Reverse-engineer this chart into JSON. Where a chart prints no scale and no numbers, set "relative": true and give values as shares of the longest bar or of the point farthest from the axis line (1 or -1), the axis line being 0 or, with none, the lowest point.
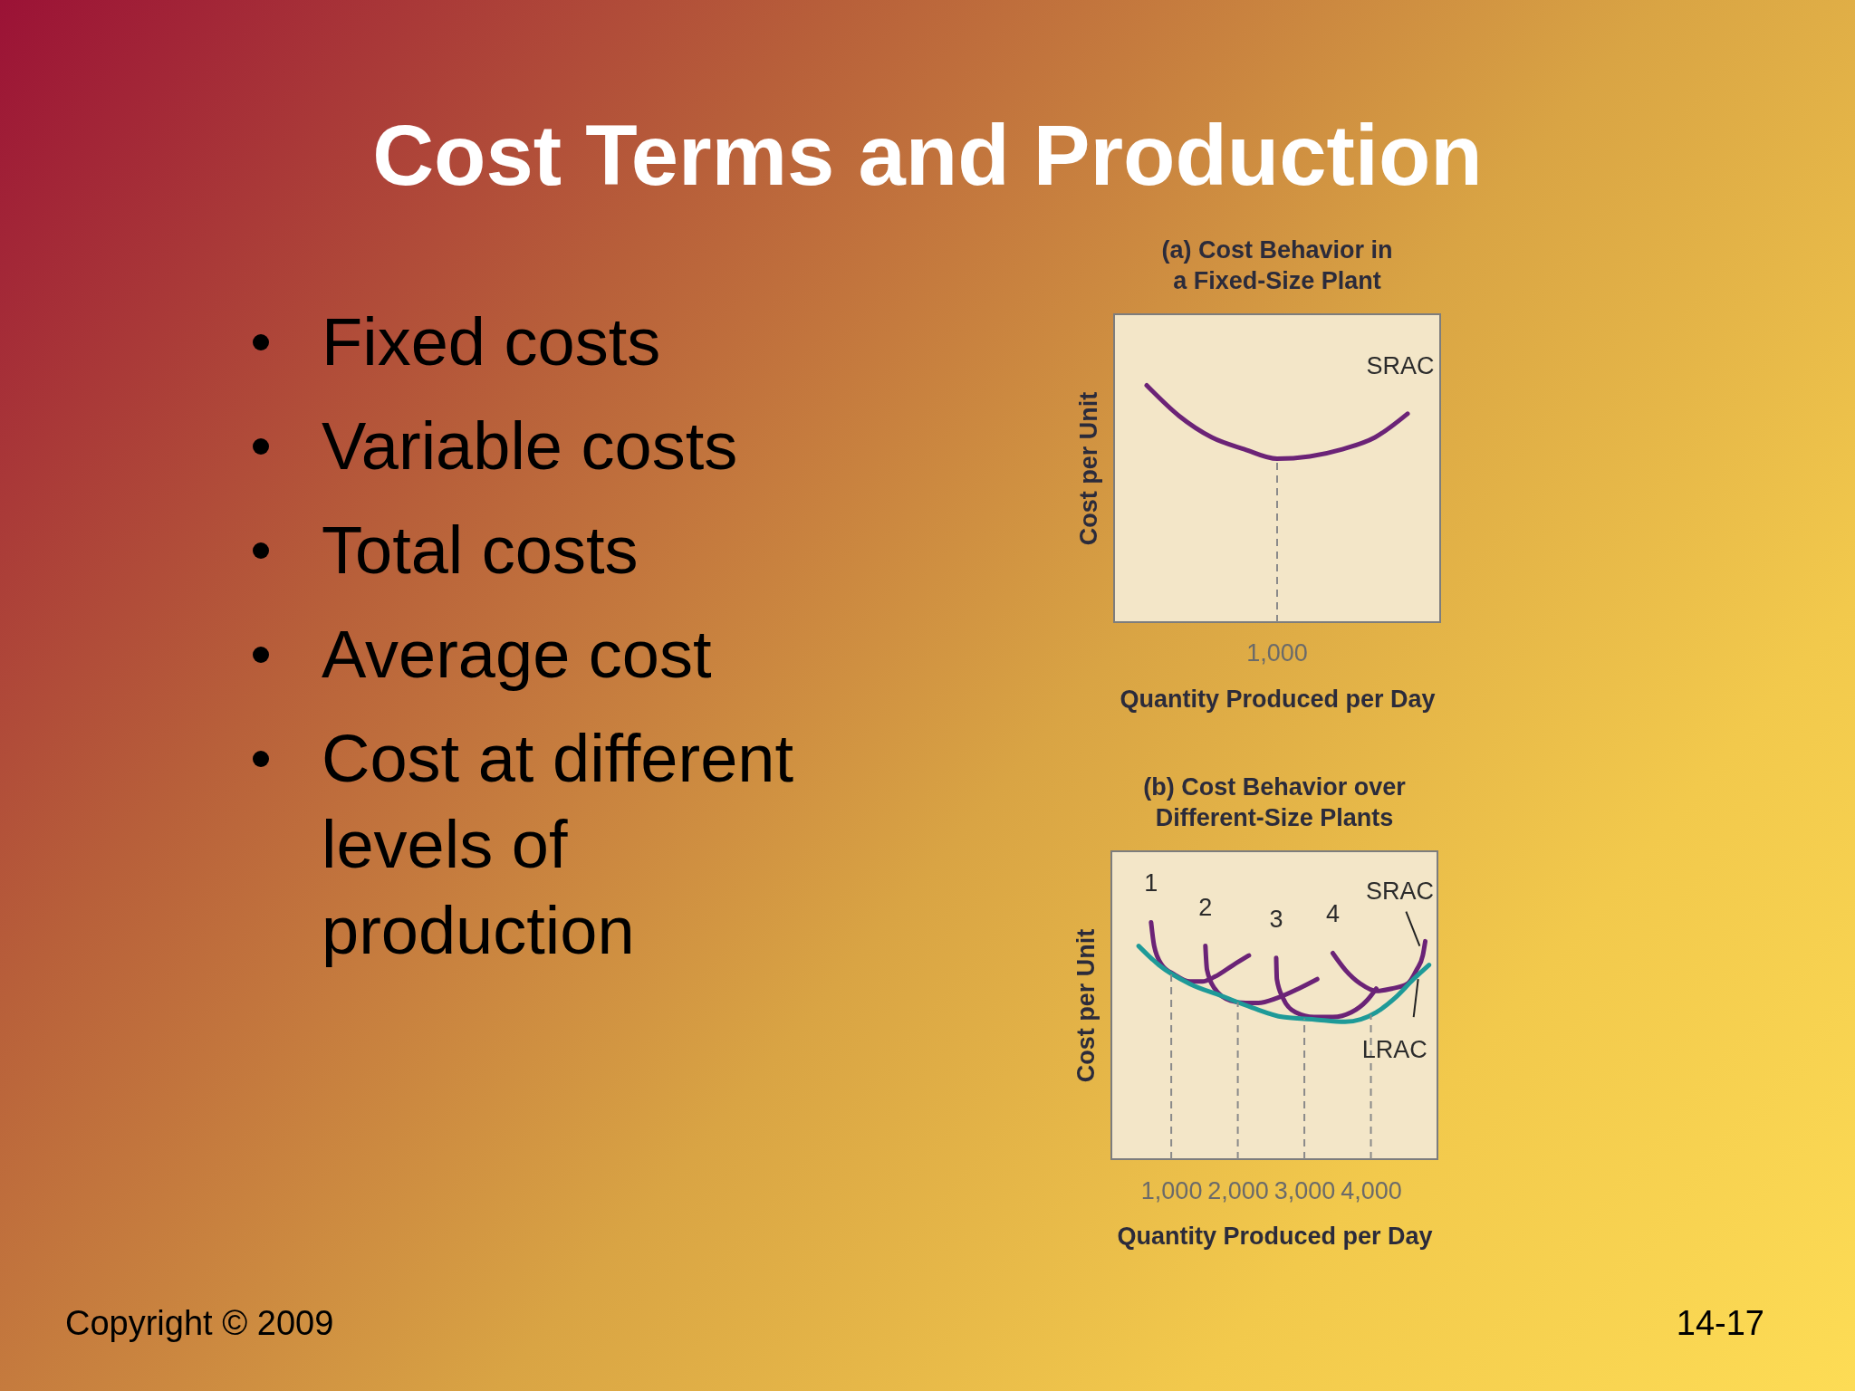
{
  "chart_data": [
    {
      "type": "other",
      "title": "Cost Terms and Production",
      "annotations": [
        "Fixed costs",
        "Variable costs",
        "Total costs",
        "Average cost",
        "Cost at different levels of production",
        "Copyright © 2009",
        "14-17"
      ]
    },
    {
      "type": "line",
      "title": "(a) Cost Behavior in\na Fixed-Size Plant",
      "xlabel": "Quantity Produced per Day",
      "ylabel": "Cost per Unit",
      "relative": true,
      "categories": [
        null,
        null,
        null,
        null,
        null,
        null,
        null,
        null,
        null
      ],
      "series": [
        {
          "name": "SRAC",
          "color": "#6b2377",
          "values": [
            1,
            0.87,
            0.78,
            0.73,
            0.69,
            0.7,
            0.73,
            0.78,
            0.88
          ]
        }
      ],
      "annotations": [
        "1,000"
      ]
    },
    {
      "type": "line",
      "title": "(b) Cost Behavior over\nDifferent-Size Plants",
      "xlabel": "Quantity Produced per Day",
      "ylabel": "Cost per Unit",
      "relative": true,
      "xlim": [
        100,
        5000
      ],
      "xticks": [
        {
          "value": 1000,
          "label": "1,000"
        },
        {
          "value": 2000,
          "label": "2,000"
        },
        {
          "value": 3000,
          "label": "3,000"
        },
        {
          "value": 4000,
          "label": "4,000"
        }
      ],
      "series": [
        {
          "name": "1",
          "color": "#6b2377",
          "x": [
            697,
            743,
            860,
            1047,
            1280,
            1467,
            1653,
            1933,
            2167
          ],
          "values": [
            1,
            0.9,
            0.82,
            0.78,
            0.75,
            0.75,
            0.77,
            0.82,
            0.86
          ]
        },
        {
          "name": "2",
          "color": "#6b2377",
          "x": [
            1513,
            1537,
            1653,
            1887,
            2120,
            2307,
            2587,
            2913,
            3193
          ],
          "values": [
            0.9,
            0.8,
            0.72,
            0.67,
            0.66,
            0.66,
            0.68,
            0.72,
            0.76
          ]
        },
        {
          "name": "3",
          "color": "#6b2377",
          "x": [
            2577,
            2587,
            2680,
            2867,
            3147,
            3427,
            3707,
            3940,
            4080
          ],
          "values": [
            0.85,
            0.76,
            0.68,
            0.62,
            0.6,
            0.6,
            0.62,
            0.67,
            0.72
          ]
        },
        {
          "name": "4",
          "color": "#6b2377",
          "x": [
            3427,
            3613,
            3847,
            4080,
            4313,
            4547,
            4687,
            4780,
            4817
          ],
          "values": [
            0.87,
            0.8,
            0.74,
            0.71,
            0.72,
            0.74,
            0.8,
            0.86,
            0.92
          ]
        },
        {
          "color": "#1e9a98",
          "x": [
            510,
            813,
            1280,
            1747,
            2213,
            2680,
            3147,
            3613,
            3847,
            4080,
            4360,
            4640,
            4873
          ],
          "values": [
            0.9,
            0.82,
            0.74,
            0.69,
            0.64,
            0.6,
            0.59,
            0.58,
            0.59,
            0.62,
            0.68,
            0.76,
            0.82
          ]
        }
      ],
      "annotations": [
        {
          "text": "SRAC",
          "x": 4733,
          "y": 0.9
        },
        {
          "text": "LRAC",
          "x": 4710,
          "y": 0.76
        }
      ],
      "ref_lines": [
        {
          "axis": "x",
          "value": 1000,
          "line_style": "dashed",
          "color": "#8a8a8a"
        },
        {
          "axis": "x",
          "value": 2000,
          "line_style": "dashed",
          "color": "#8a8a8a"
        },
        {
          "axis": "x",
          "value": 3000,
          "line_style": "dashed",
          "color": "#8a8a8a"
        },
        {
          "axis": "x",
          "value": 4000,
          "line_style": "dashed",
          "color": "#8a8a8a"
        }
      ]
    }
  ]
}
